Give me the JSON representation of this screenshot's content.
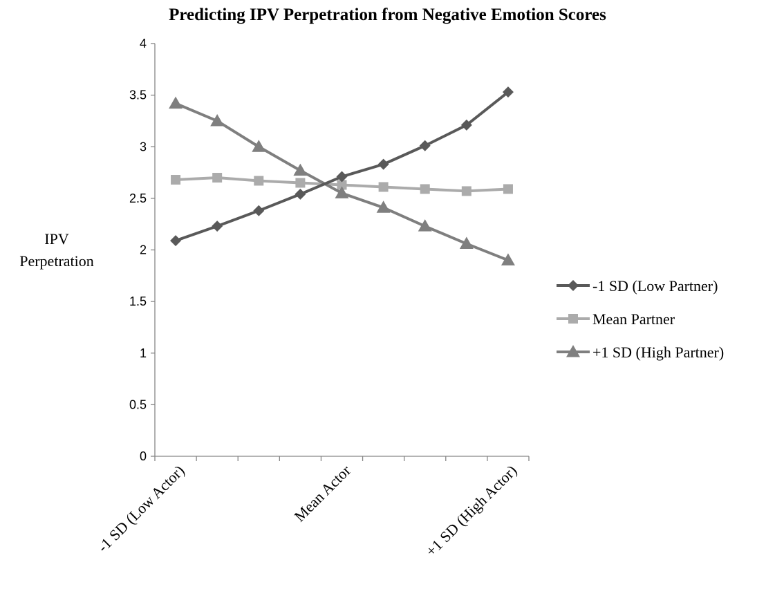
{
  "chart_data": {
    "type": "line",
    "title": "Predicting IPV Perpetration from Negative Emotion Scores",
    "ylabel": [
      "IPV",
      "Perpetration"
    ],
    "xlabel": "",
    "ylim": [
      0,
      4
    ],
    "yticks": [
      "0",
      "0.5",
      "1",
      "1.5",
      "2",
      "2.5",
      "3",
      "3.5",
      "4"
    ],
    "x_category_labels": [
      {
        "label": "-1 SD (Low Actor)",
        "point_index": 0
      },
      {
        "label": "Mean Actor",
        "point_index": 4
      },
      {
        "label": "+1 SD (High Actor)",
        "point_index": 8
      }
    ],
    "point_count": 9,
    "legend_position": "right",
    "grid": false,
    "series": [
      {
        "name": "-1 SD (Low Partner)",
        "marker": "diamond",
        "color": "#595959",
        "values": [
          2.09,
          2.23,
          2.38,
          2.54,
          2.71,
          2.83,
          3.01,
          3.21,
          3.53
        ]
      },
      {
        "name": "Mean Partner",
        "marker": "square",
        "color": "#ababab",
        "values": [
          2.68,
          2.7,
          2.67,
          2.65,
          2.63,
          2.61,
          2.59,
          2.57,
          2.59
        ]
      },
      {
        "name": "+1 SD (High Partner)",
        "marker": "triangle",
        "color": "#7f7f7f",
        "values": [
          3.42,
          3.25,
          3.0,
          2.77,
          2.55,
          2.41,
          2.23,
          2.06,
          1.9
        ]
      }
    ]
  }
}
